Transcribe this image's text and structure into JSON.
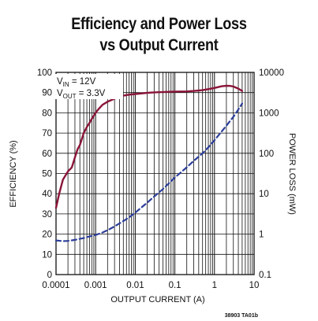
{
  "chart_data": {
    "type": "line",
    "title": [
      "Efficiency and Power Loss",
      "vs Output Current"
    ],
    "xlabel": "OUTPUT CURRENT (A)",
    "ylabel_left": "EFFICIENCY (%)",
    "ylabel_right": "POWER LOSS (mW)",
    "xscale": "log",
    "xlim": [
      0.0001,
      10
    ],
    "ylim_left": [
      0,
      100
    ],
    "yscale_right": "log",
    "ylim_right": [
      0.1,
      10000
    ],
    "x_tick_labels": [
      "0.0001",
      "0.001",
      "0.01",
      "0.1",
      "1",
      "10"
    ],
    "y_left_tick_labels": [
      "0",
      "10",
      "20",
      "30",
      "40",
      "50",
      "60",
      "70",
      "80",
      "90",
      "100"
    ],
    "y_right_tick_labels": [
      "0.1",
      "1",
      "10",
      "100",
      "1000",
      "10000"
    ],
    "grid": true,
    "annotation": {
      "vin": "V",
      "vin_sub": "IN",
      "vin_val": " = 12V",
      "vout": "V",
      "vout_sub": "OUT",
      "vout_val": " = 3.3V"
    },
    "footnote": "38903 TA01b",
    "series": [
      {
        "axis": "left",
        "style": "solid",
        "color": "#8a1538",
        "x": [
          0.0001,
          0.00012,
          0.00015,
          0.0002,
          0.00025,
          0.0003,
          0.00035,
          0.0004,
          0.0005,
          0.0006,
          0.0007,
          0.0008,
          0.001,
          0.0012,
          0.0015,
          0.002,
          0.003,
          0.005,
          0.007,
          0.01,
          0.015,
          0.02,
          0.03,
          0.05,
          0.07,
          0.1,
          0.2,
          0.3,
          0.5,
          0.7,
          1,
          1.5,
          2,
          2.5,
          3,
          4,
          5
        ],
        "y": [
          33,
          40,
          47,
          51,
          53,
          58,
          62,
          64,
          70,
          73,
          75,
          77,
          80,
          82,
          84,
          85.5,
          87,
          88.5,
          89,
          89.3,
          89.6,
          89.9,
          90.1,
          90.3,
          90.4,
          90.5,
          90.6,
          90.8,
          91.2,
          91.7,
          92.3,
          93.1,
          93.4,
          93.3,
          93,
          92,
          90.8
        ]
      },
      {
        "axis": "right",
        "style": "dashed",
        "color": "#2c3e9a",
        "x": [
          0.0001,
          0.00015,
          0.0002,
          0.0003,
          0.0005,
          0.0007,
          0.001,
          0.0015,
          0.002,
          0.003,
          0.005,
          0.007,
          0.01,
          0.02,
          0.03,
          0.05,
          0.07,
          0.1,
          0.2,
          0.3,
          0.5,
          0.7,
          1,
          2,
          3,
          4,
          5
        ],
        "y": [
          0.7,
          0.67,
          0.68,
          0.72,
          0.8,
          0.88,
          0.95,
          1.1,
          1.25,
          1.55,
          2.1,
          2.6,
          3.4,
          6.0,
          8.5,
          13,
          18,
          25,
          45,
          65,
          100,
          140,
          210,
          480,
          800,
          1200,
          1700
        ]
      }
    ]
  }
}
